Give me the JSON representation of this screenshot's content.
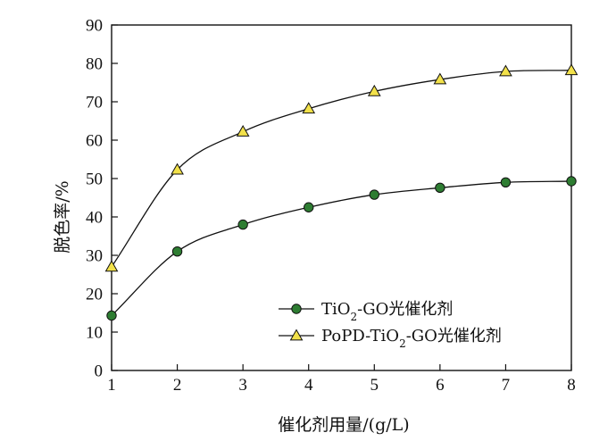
{
  "chart_data": {
    "type": "line",
    "title": "",
    "xlabel": "催化剂用量/(g/L)",
    "ylabel": "脱色率/%",
    "xlim": [
      1,
      8
    ],
    "ylim": [
      0,
      90
    ],
    "xticks": [
      1,
      2,
      3,
      4,
      5,
      6,
      7,
      8
    ],
    "yticks": [
      0,
      10,
      20,
      30,
      40,
      50,
      60,
      70,
      80,
      90
    ],
    "grid": false,
    "legend_position": "bottom-right",
    "series": [
      {
        "name": "TiO2-GO光催化剂",
        "name_parts": {
          "pre": "TiO",
          "sub": "2",
          "post": "-GO光催化剂"
        },
        "marker": "circle",
        "marker_color": "#2e7d32",
        "x": [
          1,
          2,
          3,
          4,
          5,
          6,
          7,
          8
        ],
        "values": [
          14.3,
          31.0,
          38.0,
          42.5,
          45.8,
          47.6,
          49.0,
          49.3
        ]
      },
      {
        "name": "PoPD-TiO2-GO光催化剂",
        "name_parts": {
          "pre": "PoPD-TiO",
          "sub": "2",
          "post": "-GO光催化剂"
        },
        "marker": "triangle",
        "marker_color": "#f2e14a",
        "x": [
          1,
          2,
          3,
          4,
          5,
          6,
          7,
          8
        ],
        "values": [
          27.0,
          52.3,
          62.2,
          68.2,
          72.7,
          75.8,
          77.9,
          78.2
        ]
      }
    ]
  }
}
